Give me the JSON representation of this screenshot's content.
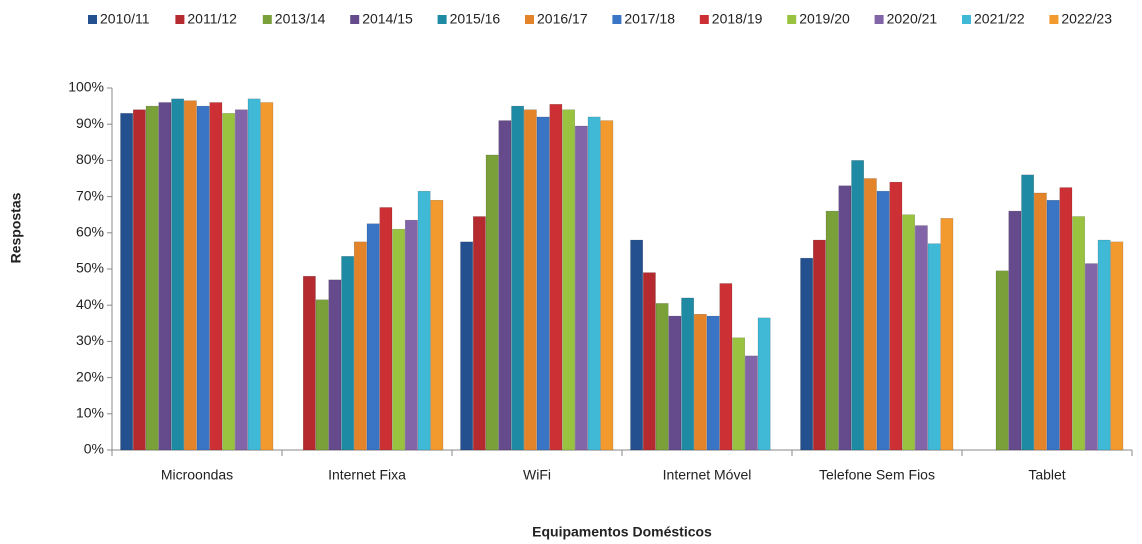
{
  "chart_data": {
    "type": "bar",
    "x_label": "Equipamentos Domésticos",
    "y_label": "Respostas",
    "categories": [
      "Microondas",
      "Internet Fixa",
      "WiFi",
      "Internet Móvel",
      "Telefone Sem Fios",
      "Tablet"
    ],
    "series": [
      {
        "name": "2010/11",
        "color": "#24508f",
        "values": [
          93,
          null,
          57.5,
          58,
          53,
          null
        ]
      },
      {
        "name": "2011/12",
        "color": "#b52a2e",
        "values": [
          94,
          48,
          64.5,
          49,
          58,
          null
        ]
      },
      {
        "name": "2013/14",
        "color": "#7aa03a",
        "values": [
          95,
          41.5,
          81.5,
          40.5,
          66,
          49.5
        ]
      },
      {
        "name": "2014/15",
        "color": "#654a8c",
        "values": [
          96,
          47,
          91,
          37,
          73,
          66
        ]
      },
      {
        "name": "2015/16",
        "color": "#1f8aa3",
        "values": [
          97,
          53.5,
          95,
          42,
          80,
          76
        ]
      },
      {
        "name": "2016/17",
        "color": "#e3842a",
        "values": [
          96.5,
          57.5,
          94,
          37.5,
          75,
          71
        ]
      },
      {
        "name": "2017/18",
        "color": "#3a74c4",
        "values": [
          95,
          62.5,
          92,
          37,
          71.5,
          69
        ]
      },
      {
        "name": "2018/19",
        "color": "#cc3035",
        "values": [
          96,
          67,
          95.5,
          46,
          74,
          72.5
        ]
      },
      {
        "name": "2019/20",
        "color": "#98c23f",
        "values": [
          93,
          61,
          94,
          31,
          65,
          64.5
        ]
      },
      {
        "name": "2020/21",
        "color": "#8265a8",
        "values": [
          94,
          63.5,
          89.5,
          26,
          62,
          51.5
        ]
      },
      {
        "name": "2021/22",
        "color": "#40b9d6",
        "values": [
          97,
          71.5,
          92,
          36.5,
          57,
          58
        ]
      },
      {
        "name": "2022/23",
        "color": "#f39a2e",
        "values": [
          96,
          69,
          91,
          null,
          64,
          57.5
        ]
      }
    ],
    "ylim": [
      0,
      100
    ],
    "yticks": [
      {
        "value": 0,
        "label": "0%"
      },
      {
        "value": 10,
        "label": "10%"
      },
      {
        "value": 20,
        "label": "20%"
      },
      {
        "value": 30,
        "label": "30%"
      },
      {
        "value": 40,
        "label": "40%"
      },
      {
        "value": 50,
        "label": "50%"
      },
      {
        "value": 60,
        "label": "60%"
      },
      {
        "value": 70,
        "label": "70%"
      },
      {
        "value": 80,
        "label": "80%"
      },
      {
        "value": 90,
        "label": "90%"
      },
      {
        "value": 100,
        "label": "100%"
      }
    ],
    "grid": false,
    "legend": "top"
  }
}
